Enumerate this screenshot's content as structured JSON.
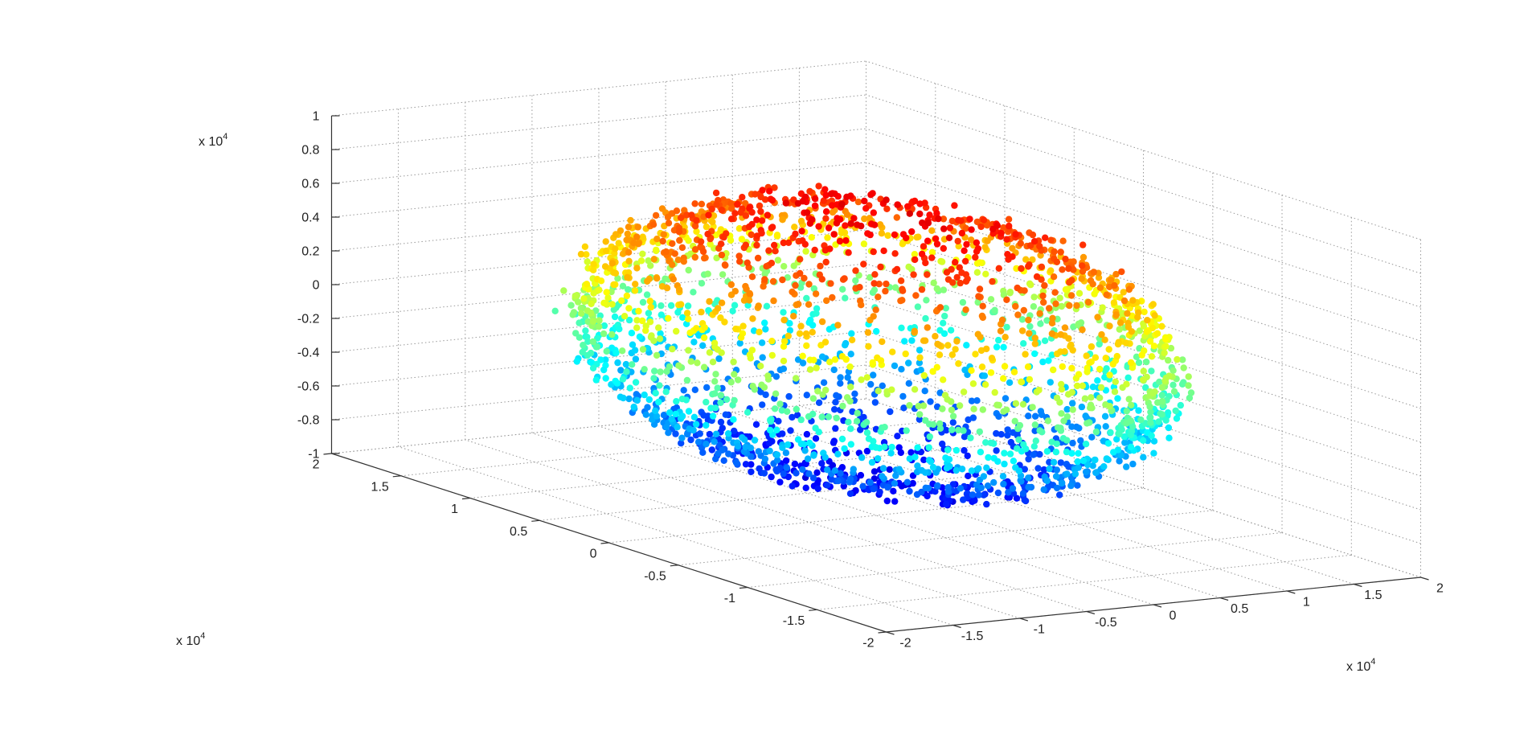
{
  "chart_data": {
    "type": "scatter",
    "dimensions": 3,
    "title": "",
    "xlabel": "",
    "ylabel": "",
    "zlabel": "",
    "x": {
      "range": [
        -2,
        2
      ],
      "ticks": [
        "-2",
        "-1.5",
        "-1",
        "-0.5",
        "0",
        "0.5",
        "1",
        "1.5",
        "2"
      ],
      "multiplier": {
        "base": "x 10",
        "exponent": "4"
      }
    },
    "y": {
      "range": [
        -2,
        2
      ],
      "ticks": [
        "-2",
        "-1.5",
        "-1",
        "-0.5",
        "0",
        "0.5",
        "1",
        "1.5",
        "2"
      ],
      "multiplier": {
        "base": "x 10",
        "exponent": "4"
      }
    },
    "z": {
      "range": [
        -1,
        1
      ],
      "ticks": [
        "-1",
        "-0.8",
        "-0.6",
        "-0.4",
        "-0.2",
        "0",
        "0.2",
        "0.4",
        "0.6",
        "0.8",
        "1"
      ],
      "multiplier": {
        "base": "x 10",
        "exponent": "4"
      }
    },
    "grid": true,
    "colormap": "jet",
    "color_by": "z",
    "marker": "filled-circle",
    "shape": "ellipsoid shell",
    "approx_point_count": 2600,
    "colors": [
      "#00008f",
      "#0000ff",
      "#0080ff",
      "#00ffff",
      "#80ff80",
      "#ffff00",
      "#ff8000",
      "#ff0000",
      "#800000"
    ]
  }
}
